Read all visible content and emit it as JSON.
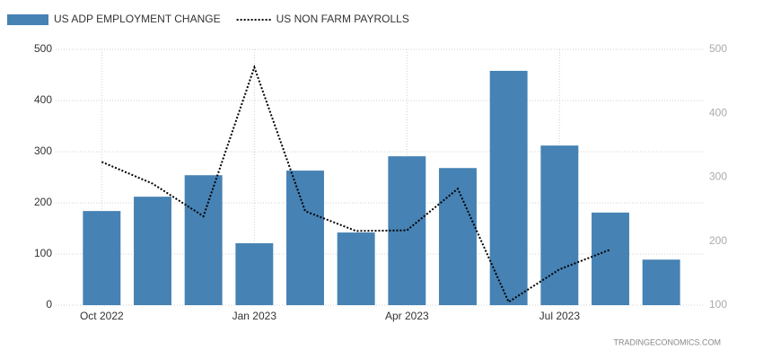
{
  "chart_data": {
    "type": "bar_line",
    "categories": [
      "Oct 2022",
      null,
      null,
      "Jan 2023",
      null,
      null,
      "Apr 2023",
      null,
      null,
      "Jul 2023",
      null,
      null
    ],
    "series": [
      {
        "name": "US ADP EMPLOYMENT CHANGE",
        "type": "bar",
        "color": "#4682b4",
        "axis": "y",
        "values": [
          184,
          212,
          254,
          121,
          263,
          142,
          291,
          268,
          458,
          312,
          181,
          89
        ]
      },
      {
        "name": "US NON FARM PAYROLLS",
        "type": "line",
        "color": "#000000",
        "axis": "y2",
        "values": [
          324,
          290,
          239,
          472,
          247,
          216,
          217,
          282,
          105,
          156,
          187,
          null
        ]
      }
    ],
    "ylim": [
      0,
      500
    ],
    "yticks": [
      0,
      100,
      200,
      300,
      400,
      500
    ],
    "y2lim": [
      100,
      500
    ],
    "y2ticks": [
      100,
      200,
      300,
      400,
      500
    ],
    "grid": true,
    "source": "TRADINGECONOMICS.COM"
  }
}
